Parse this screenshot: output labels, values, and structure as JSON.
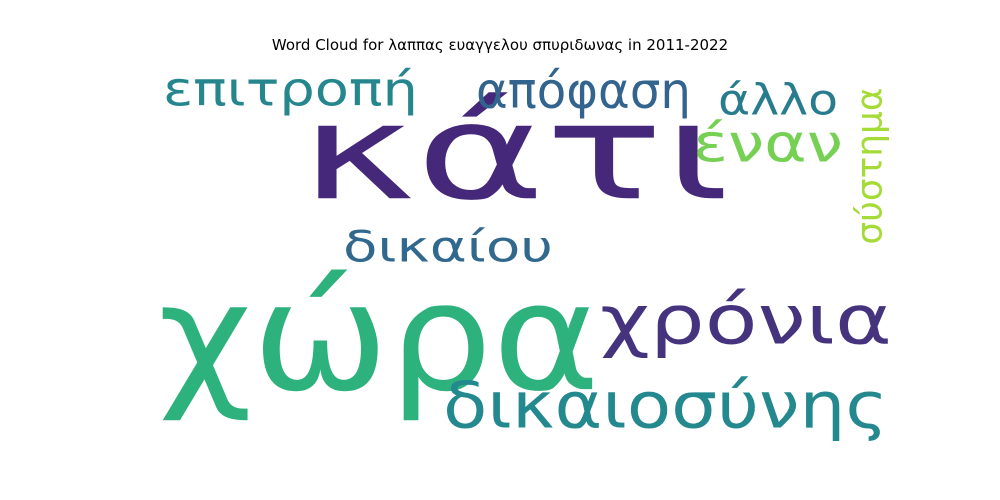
{
  "title": "Word Cloud for λαππας ευαγγελου σπυριδωνας in 2011-2022",
  "words": [
    {
      "text": "κάτι",
      "color": "#46287a",
      "orientation": "horizontal"
    },
    {
      "text": "χώρα",
      "color": "#2db27d",
      "orientation": "horizontal"
    },
    {
      "text": "χρόνια",
      "color": "#46337e",
      "orientation": "horizontal"
    },
    {
      "text": "δικαιοσύνης",
      "color": "#23898e",
      "orientation": "horizontal"
    },
    {
      "text": "επιτροπή",
      "color": "#26868e",
      "orientation": "horizontal"
    },
    {
      "text": "απόφαση",
      "color": "#32648e",
      "orientation": "horizontal"
    },
    {
      "text": "δικαίου",
      "color": "#31688e",
      "orientation": "horizontal"
    },
    {
      "text": "άλλο",
      "color": "#287c8e",
      "orientation": "horizontal"
    },
    {
      "text": "έναν",
      "color": "#75d054",
      "orientation": "horizontal"
    },
    {
      "text": "σύστημα",
      "color": "#a5db36",
      "orientation": "vertical"
    }
  ]
}
